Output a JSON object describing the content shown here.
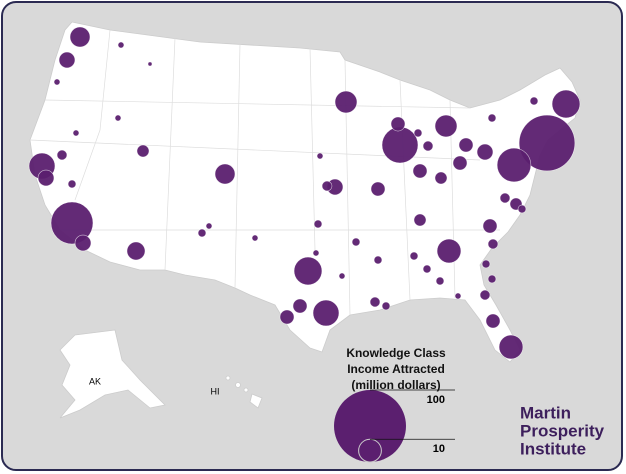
{
  "legend": {
    "title_lines": [
      "Knowledge Class",
      "Income Attracted",
      "(million dollars)"
    ],
    "sizes": [
      100,
      10
    ]
  },
  "map_labels": [
    "AK",
    "HI"
  ],
  "logo": [
    "Martin",
    "Prosperity",
    "Institute"
  ],
  "bubble_color": "#5b1f6f",
  "bubbles": [
    7.7,
    4.9,
    13,
    1.9,
    4.9,
    34,
    4.9,
    6.3,
    7.7,
    2.8,
    9.3,
    25,
    9.3,
    60,
    15,
    22,
    4.9,
    15,
    13,
    3.8,
    11,
    11,
    3.8,
    1.9,
    4.9,
    3.8,
    2.8,
    3.8,
    3.8,
    3.8,
    2.8,
    3.8,
    2.8,
    3.8,
    0.69,
    0.69,
    0.69,
    0.69,
    1.2,
    0.69,
    0.69,
    1.2,
    0.69,
    1.2,
    1.9,
    1.2,
    1.2,
    1.2,
    1.2,
    0.69,
    1.2,
    1.2,
    1.9,
    1.9,
    1.2,
    1.2,
    1.2,
    0.69,
    1.9,
    1.2,
    0.31,
    1.9,
    1.2,
    1.2,
    0.69,
    3.8
  ]
}
